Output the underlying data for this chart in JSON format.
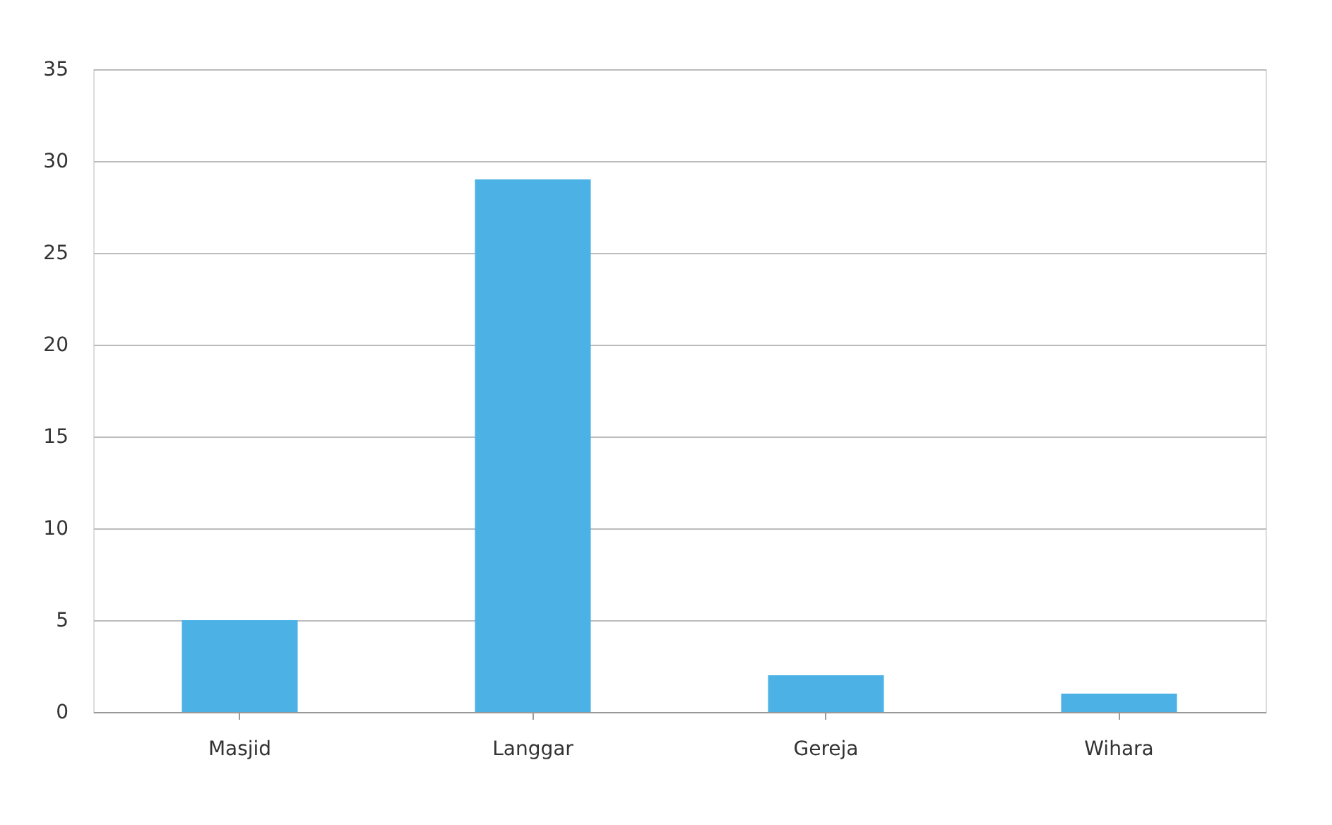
{
  "chart_data": {
    "type": "bar",
    "categories": [
      "Masjid",
      "Langgar",
      "Gereja",
      "Wihara"
    ],
    "values": [
      5,
      29,
      2,
      1
    ],
    "color": "#4cb2e6",
    "ylim": [
      0,
      35
    ],
    "yticks": [
      0,
      5,
      10,
      15,
      20,
      25,
      30,
      35
    ],
    "grid": "y"
  }
}
